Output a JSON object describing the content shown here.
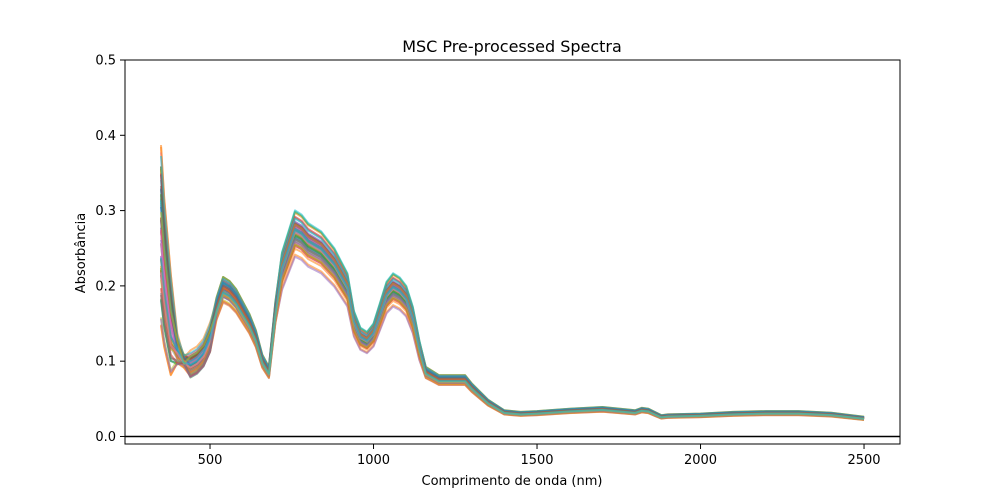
{
  "chart_data": {
    "type": "line",
    "title": "MSC Pre-processed Spectra",
    "xlabel": "Comprimento de onda (nm)",
    "ylabel": "Absorbância",
    "xlim": [
      240,
      2610
    ],
    "ylim": [
      -0.01,
      0.5
    ],
    "xticks": [
      500,
      1000,
      1500,
      2000,
      2500
    ],
    "yticks": [
      0.0,
      0.1,
      0.2,
      0.3,
      0.4,
      0.5
    ],
    "xtick_labels": [
      "500",
      "1000",
      "1500",
      "2000",
      "2500"
    ],
    "ytick_labels": [
      "0.0",
      "0.1",
      "0.2",
      "0.3",
      "0.4",
      "0.5"
    ],
    "grid": false,
    "legend": "none",
    "horizontal_line": {
      "y": 0.0,
      "color": "#000000"
    },
    "line_alpha": 0.55,
    "series_count": 60,
    "palette": [
      "#1f77b4",
      "#ff7f0e",
      "#2ca02c",
      "#d62728",
      "#9467bd",
      "#8c564b",
      "#e377c2",
      "#7f7f7f",
      "#bcbd22",
      "#17becf"
    ],
    "mean_spectrum": {
      "x": [
        350,
        360,
        380,
        400,
        420,
        440,
        460,
        480,
        500,
        520,
        540,
        560,
        580,
        600,
        620,
        640,
        660,
        680,
        700,
        720,
        740,
        760,
        780,
        800,
        820,
        840,
        860,
        880,
        900,
        920,
        940,
        960,
        980,
        1000,
        1020,
        1040,
        1060,
        1080,
        1100,
        1120,
        1140,
        1160,
        1180,
        1200,
        1250,
        1280,
        1300,
        1350,
        1400,
        1450,
        1500,
        1600,
        1700,
        1800,
        1820,
        1840,
        1860,
        1880,
        1900,
        2000,
        2100,
        2200,
        2300,
        2400,
        2500
      ],
      "y": [
        0.27,
        0.22,
        0.15,
        0.115,
        0.1,
        0.095,
        0.1,
        0.11,
        0.13,
        0.17,
        0.195,
        0.19,
        0.18,
        0.165,
        0.15,
        0.13,
        0.1,
        0.085,
        0.165,
        0.22,
        0.245,
        0.27,
        0.265,
        0.255,
        0.25,
        0.245,
        0.235,
        0.225,
        0.21,
        0.195,
        0.15,
        0.13,
        0.125,
        0.135,
        0.16,
        0.185,
        0.195,
        0.19,
        0.18,
        0.155,
        0.115,
        0.085,
        0.08,
        0.075,
        0.075,
        0.075,
        0.065,
        0.045,
        0.032,
        0.03,
        0.031,
        0.034,
        0.036,
        0.032,
        0.035,
        0.034,
        0.03,
        0.026,
        0.027,
        0.028,
        0.03,
        0.031,
        0.031,
        0.029,
        0.024
      ]
    }
  }
}
